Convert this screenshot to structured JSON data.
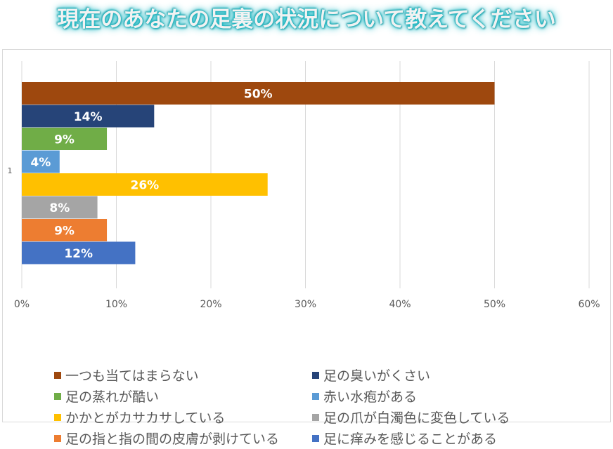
{
  "title": "現在のあなたの足裏の状況について教えてください",
  "chart_data": {
    "type": "bar",
    "orientation": "horizontal",
    "category_label": "1",
    "xlim": [
      0,
      60
    ],
    "x_ticks": [
      "0%",
      "10%",
      "20%",
      "30%",
      "40%",
      "50%",
      "60%"
    ],
    "x_tick_values": [
      0,
      10,
      20,
      30,
      40,
      50,
      60
    ],
    "grid": true,
    "legend_position": "bottom",
    "series": [
      {
        "name": "一つも当てはまらない",
        "value": 50,
        "label": "50%",
        "color": "#9e480e"
      },
      {
        "name": "足の臭いがくさい",
        "value": 14,
        "label": "14%",
        "color": "#264478"
      },
      {
        "name": "足の蒸れが酷い",
        "value": 9,
        "label": "9%",
        "color": "#70ad47"
      },
      {
        "name": "赤い水疱がある",
        "value": 4,
        "label": "4%",
        "color": "#5b9bd5"
      },
      {
        "name": "かかとがカサカサしている",
        "value": 26,
        "label": "26%",
        "color": "#ffc000"
      },
      {
        "name": "足の爪が白濁色に変色している",
        "value": 8,
        "label": "8%",
        "color": "#a5a5a5"
      },
      {
        "name": "足の指と指の間の皮膚が剥けている",
        "value": 9,
        "label": "9%",
        "color": "#ed7d31"
      },
      {
        "name": "足に痒みを感じることがある",
        "value": 12,
        "label": "12%",
        "color": "#4472c4"
      }
    ]
  }
}
